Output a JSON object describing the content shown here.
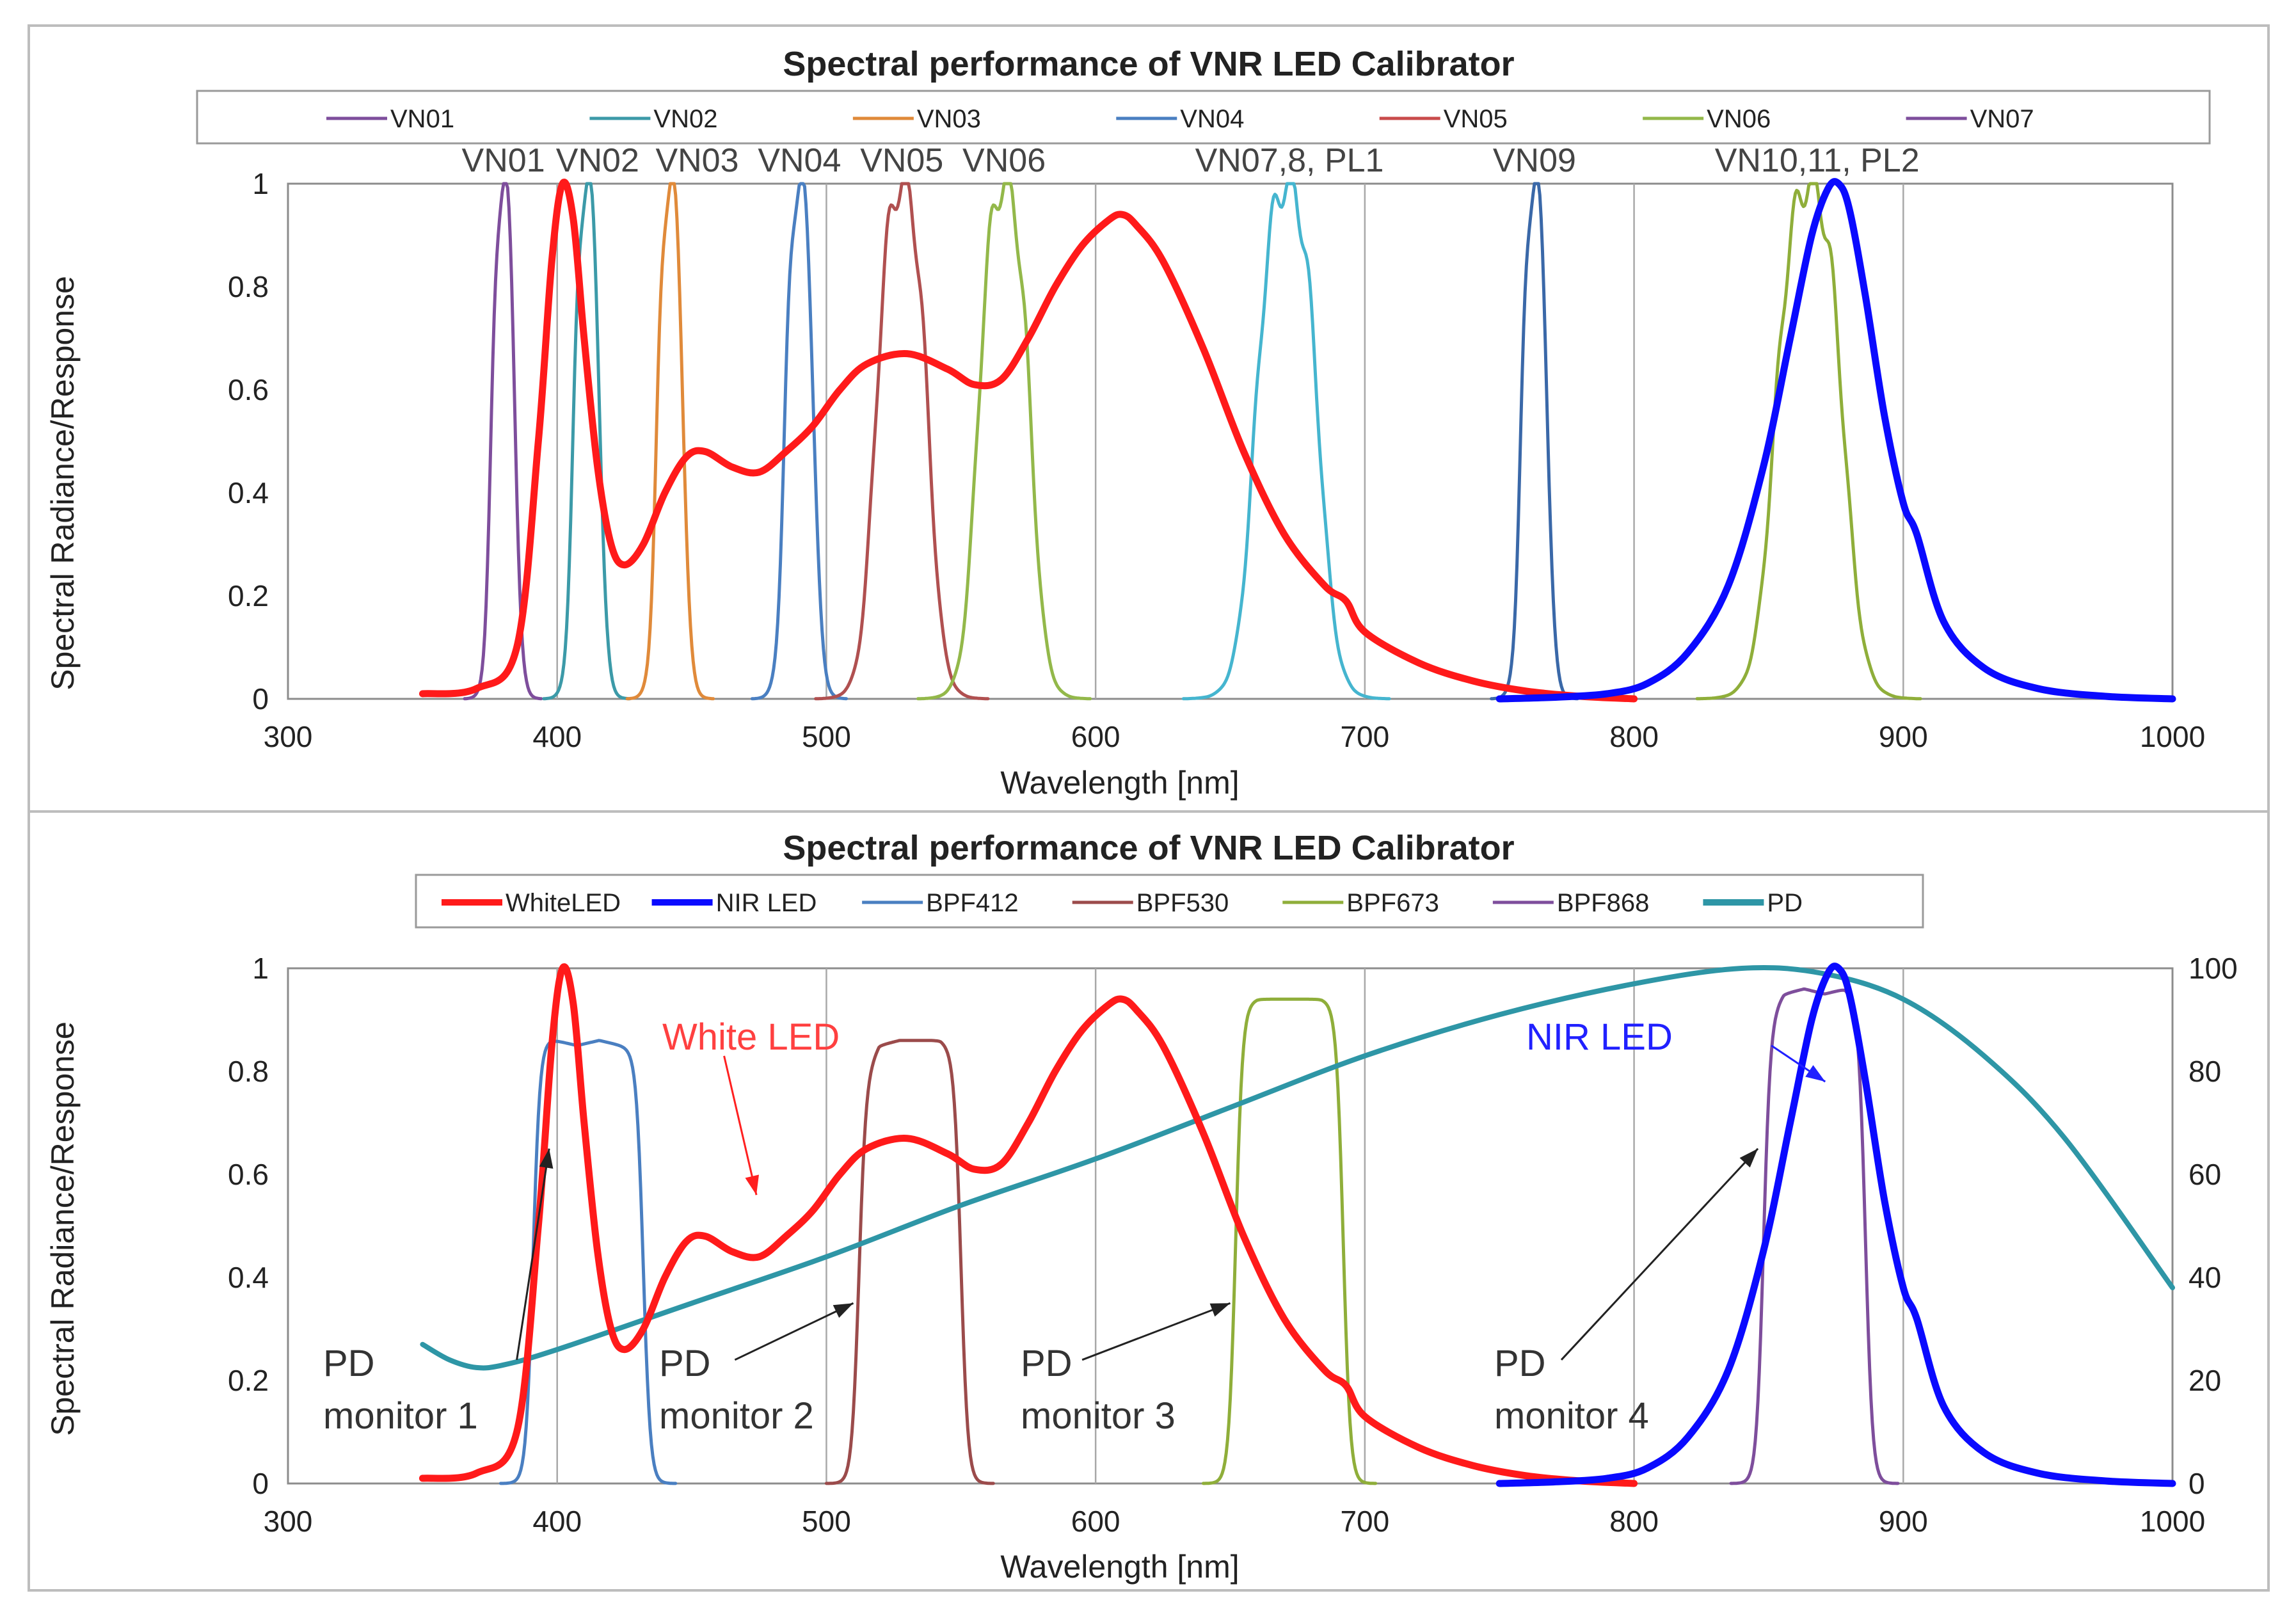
{
  "chart_data": [
    {
      "type": "line",
      "title": "Spectral performance of VNR LED Calibrator",
      "xlabel": "Wavelength [nm]",
      "ylabel": "Spectral Radiance/Response",
      "xlim": [
        300,
        1000
      ],
      "ylim": [
        0,
        1
      ],
      "xticks": [
        "300",
        "400",
        "500",
        "600",
        "700",
        "800",
        "900",
        "1000"
      ],
      "yticks": [
        "0",
        "0.2",
        "0.4",
        "0.6",
        "0.8",
        "1"
      ],
      "grid": "vertical",
      "legend_position": "top",
      "legend": [
        {
          "name": "VN01",
          "color": "#7e4e9c"
        },
        {
          "name": "VN02",
          "color": "#3c9aa8"
        },
        {
          "name": "VN03",
          "color": "#e08a3a"
        },
        {
          "name": "VN04",
          "color": "#4a7fc1"
        },
        {
          "name": "VN05",
          "color": "#c94b4b"
        },
        {
          "name": "VN06",
          "color": "#93b84a"
        },
        {
          "name": "VN07",
          "color": "#7e4e9c"
        }
      ],
      "band_labels": [
        {
          "text": "VN01",
          "x": 380
        },
        {
          "text": "VN02",
          "x": 415
        },
        {
          "text": "VN03",
          "x": 452
        },
        {
          "text": "VN04",
          "x": 490
        },
        {
          "text": "VN05",
          "x": 528
        },
        {
          "text": "VN06",
          "x": 566
        },
        {
          "text": "VN07,8, PL1",
          "x": 672
        },
        {
          "text": "VN09",
          "x": 763
        },
        {
          "text": "VN10,11, PL2",
          "x": 868
        }
      ],
      "series": [
        {
          "name": "VN01",
          "kind": "band",
          "center": 380,
          "width": 9,
          "peak": 1.0,
          "color": "#7e4e9c"
        },
        {
          "name": "VN02",
          "kind": "band",
          "center": 411,
          "width": 10,
          "peak": 1.0,
          "color": "#3c9aa8"
        },
        {
          "name": "VN03",
          "kind": "band",
          "center": 442,
          "width": 10,
          "peak": 1.0,
          "color": "#e08a3a"
        },
        {
          "name": "VN04",
          "kind": "band",
          "center": 490,
          "width": 11,
          "peak": 1.0,
          "color": "#4a7fc1"
        },
        {
          "name": "VN05",
          "kind": "band",
          "center": 528,
          "width": 20,
          "peak": 1.0,
          "color": "#b05050"
        },
        {
          "name": "VN06",
          "kind": "band",
          "center": 566,
          "width": 20,
          "peak": 1.0,
          "color": "#93b84a"
        },
        {
          "name": "VN07,8",
          "kind": "band",
          "center": 671,
          "width": 24,
          "peak": 1.0,
          "color": "#45b5cf"
        },
        {
          "name": "VN09",
          "kind": "band",
          "center": 763,
          "width": 10,
          "peak": 1.0,
          "color": "#3a68a8"
        },
        {
          "name": "VN10,11",
          "kind": "band",
          "center": 865,
          "width": 26,
          "peak": 1.0,
          "color": "#8fae3a"
        },
        {
          "name": "White LED",
          "kind": "curve",
          "color": "#ff1a1a",
          "x": [
            350,
            370,
            385,
            393,
            398,
            402,
            406,
            410,
            415,
            420,
            425,
            432,
            440,
            448,
            455,
            465,
            475,
            485,
            495,
            505,
            515,
            530,
            545,
            555,
            565,
            575,
            585,
            595,
            605,
            610,
            615,
            625,
            640,
            655,
            670,
            685,
            693,
            700,
            720,
            740,
            760,
            780,
            800
          ],
          "y": [
            0.01,
            0.02,
            0.1,
            0.5,
            0.85,
            1.0,
            0.93,
            0.7,
            0.45,
            0.3,
            0.26,
            0.3,
            0.4,
            0.47,
            0.48,
            0.45,
            0.44,
            0.48,
            0.53,
            0.6,
            0.65,
            0.67,
            0.64,
            0.61,
            0.62,
            0.7,
            0.8,
            0.88,
            0.93,
            0.94,
            0.92,
            0.85,
            0.68,
            0.48,
            0.32,
            0.22,
            0.19,
            0.13,
            0.07,
            0.035,
            0.015,
            0.005,
            0.0
          ]
        },
        {
          "name": "NIR LED",
          "kind": "curve",
          "color": "#0a0aff",
          "x": [
            750,
            770,
            790,
            805,
            820,
            835,
            848,
            858,
            866,
            872,
            876,
            880,
            886,
            893,
            900,
            905,
            915,
            930,
            950,
            975,
            1000
          ],
          "y": [
            0.0,
            0.003,
            0.01,
            0.03,
            0.09,
            0.22,
            0.45,
            0.7,
            0.9,
            0.99,
            1.0,
            0.95,
            0.78,
            0.55,
            0.38,
            0.32,
            0.15,
            0.06,
            0.02,
            0.005,
            0.0
          ]
        }
      ]
    },
    {
      "type": "line",
      "title": "Spectral performance of VNR LED Calibrator",
      "xlabel": "Wavelength [nm]",
      "ylabel": "Spectral Radiance/Response",
      "xlim": [
        300,
        1000
      ],
      "ylim": [
        0,
        1
      ],
      "y2lim": [
        0,
        100
      ],
      "xticks": [
        "300",
        "400",
        "500",
        "600",
        "700",
        "800",
        "900",
        "1000"
      ],
      "yticks": [
        "0",
        "0.2",
        "0.4",
        "0.6",
        "0.8",
        "1"
      ],
      "y2ticks": [
        "0",
        "20",
        "40",
        "60",
        "80",
        "100"
      ],
      "grid": "vertical",
      "legend_position": "top",
      "legend": [
        {
          "name": "WhiteLED",
          "color": "#ff1a1a"
        },
        {
          "name": "NIR LED",
          "color": "#0a0aff"
        },
        {
          "name": "BPF412",
          "color": "#4a7fc1"
        },
        {
          "name": "BPF530",
          "color": "#9b4b4b"
        },
        {
          "name": "BPF673",
          "color": "#8fae3a"
        },
        {
          "name": "BPF868",
          "color": "#7e4e9c"
        },
        {
          "name": "PD",
          "color": "#2e96a6"
        }
      ],
      "annotations": {
        "white_led": "White LED",
        "nir_led": "NIR LED",
        "pd": "PD",
        "monitor1": "monitor 1",
        "monitor2": "monitor 2",
        "monitor3": "monitor 3",
        "monitor4": "monitor 4"
      },
      "series": [
        {
          "name": "BPF412",
          "kind": "flat",
          "left": 391,
          "right": 432,
          "top": [
            0.87,
            0.86,
            0.85,
            0.86,
            0.85,
            0.84
          ],
          "color": "#4a7fc1"
        },
        {
          "name": "BPF530",
          "kind": "flat",
          "left": 512,
          "right": 550,
          "top": [
            0.78,
            0.85,
            0.86,
            0.86,
            0.86,
            0.84
          ],
          "color": "#9b4b4b"
        },
        {
          "name": "BPF673",
          "kind": "flat",
          "left": 652,
          "right": 692,
          "top": [
            0.93,
            0.94,
            0.94,
            0.94,
            0.94,
            0.93
          ],
          "color": "#8fae3a"
        },
        {
          "name": "BPF868",
          "kind": "flat",
          "left": 848,
          "right": 886,
          "top": [
            0.9,
            0.95,
            0.96,
            0.95,
            0.96,
            0.93
          ],
          "color": "#7e4e9c"
        },
        {
          "name": "WhiteLED",
          "kind": "curve",
          "color": "#ff1a1a",
          "x": [
            350,
            370,
            385,
            393,
            398,
            402,
            406,
            410,
            415,
            420,
            425,
            432,
            440,
            448,
            455,
            465,
            475,
            485,
            495,
            505,
            515,
            530,
            545,
            555,
            565,
            575,
            585,
            595,
            605,
            610,
            615,
            625,
            640,
            655,
            670,
            685,
            693,
            700,
            720,
            740,
            760,
            780,
            800
          ],
          "y": [
            0.01,
            0.02,
            0.1,
            0.5,
            0.85,
            1.0,
            0.93,
            0.7,
            0.45,
            0.3,
            0.26,
            0.3,
            0.4,
            0.47,
            0.48,
            0.45,
            0.44,
            0.48,
            0.53,
            0.6,
            0.65,
            0.67,
            0.64,
            0.61,
            0.62,
            0.7,
            0.8,
            0.88,
            0.93,
            0.94,
            0.92,
            0.85,
            0.68,
            0.48,
            0.32,
            0.22,
            0.19,
            0.13,
            0.07,
            0.035,
            0.015,
            0.005,
            0.0
          ]
        },
        {
          "name": "NIR LED",
          "kind": "curve",
          "color": "#0a0aff",
          "x": [
            750,
            770,
            790,
            805,
            820,
            835,
            848,
            858,
            866,
            872,
            876,
            880,
            886,
            893,
            900,
            905,
            915,
            930,
            950,
            975,
            1000
          ],
          "y": [
            0.0,
            0.003,
            0.01,
            0.03,
            0.09,
            0.22,
            0.45,
            0.7,
            0.9,
            0.99,
            1.0,
            0.95,
            0.78,
            0.55,
            0.38,
            0.32,
            0.15,
            0.06,
            0.02,
            0.005,
            0.0
          ]
        },
        {
          "name": "PD",
          "kind": "curve",
          "axis": "y2",
          "color": "#2e96a6",
          "x": [
            350,
            360,
            370,
            380,
            400,
            450,
            500,
            550,
            600,
            650,
            700,
            750,
            800,
            840,
            870,
            900,
            930,
            960,
            1000
          ],
          "y": [
            27,
            24,
            22.5,
            23,
            26,
            35,
            44,
            54,
            63,
            73,
            83,
            91,
            97,
            100,
            99,
            94,
            83,
            67,
            38
          ]
        }
      ]
    }
  ]
}
